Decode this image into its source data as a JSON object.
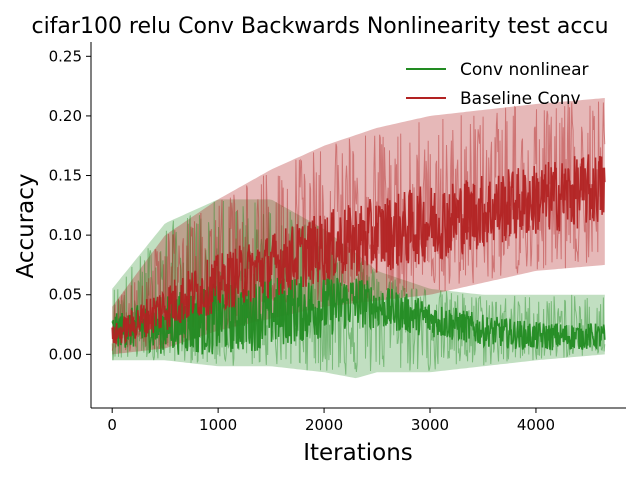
{
  "chart_data": {
    "type": "line",
    "title": "cifar100 relu Conv Backwards Nonlinearity test accu",
    "xlabel": "Iterations",
    "ylabel": "Accuracy",
    "xlim": [
      -200,
      4850
    ],
    "ylim": [
      -0.045,
      0.262
    ],
    "x_ticks": [
      0,
      1000,
      2000,
      3000,
      4000
    ],
    "x_tick_labels": [
      "0",
      "1000",
      "2000",
      "3000",
      "4000"
    ],
    "y_ticks": [
      0.0,
      0.05,
      0.1,
      0.15,
      0.2,
      0.25
    ],
    "y_tick_labels": [
      "0.00",
      "0.05",
      "0.10",
      "0.15",
      "0.20",
      "0.25"
    ],
    "grid": false,
    "legend_position": "top-right",
    "series": [
      {
        "name": "Conv nonlinear",
        "color": "#228b22",
        "x": [
          0,
          500,
          1000,
          1500,
          2000,
          2300,
          2500,
          3000,
          3500,
          4000,
          4650
        ],
        "mean": [
          0.02,
          0.025,
          0.03,
          0.035,
          0.04,
          0.045,
          0.04,
          0.03,
          0.02,
          0.015,
          0.015
        ],
        "low": [
          -0.005,
          -0.005,
          -0.01,
          -0.01,
          -0.015,
          -0.02,
          -0.015,
          -0.015,
          -0.01,
          -0.005,
          0.0
        ],
        "high": [
          0.055,
          0.11,
          0.13,
          0.13,
          0.105,
          0.085,
          0.07,
          0.055,
          0.05,
          0.05,
          0.05
        ]
      },
      {
        "name": "Baseline Conv",
        "color": "#b22222",
        "x": [
          0,
          500,
          1000,
          1500,
          2000,
          2500,
          3000,
          3500,
          4000,
          4650
        ],
        "mean": [
          0.015,
          0.04,
          0.06,
          0.075,
          0.09,
          0.1,
          0.11,
          0.12,
          0.13,
          0.14
        ],
        "low": [
          0.0,
          0.005,
          0.02,
          0.03,
          0.04,
          0.045,
          0.05,
          0.06,
          0.07,
          0.075
        ],
        "high": [
          0.04,
          0.1,
          0.13,
          0.155,
          0.175,
          0.19,
          0.2,
          0.205,
          0.21,
          0.215
        ]
      }
    ]
  }
}
